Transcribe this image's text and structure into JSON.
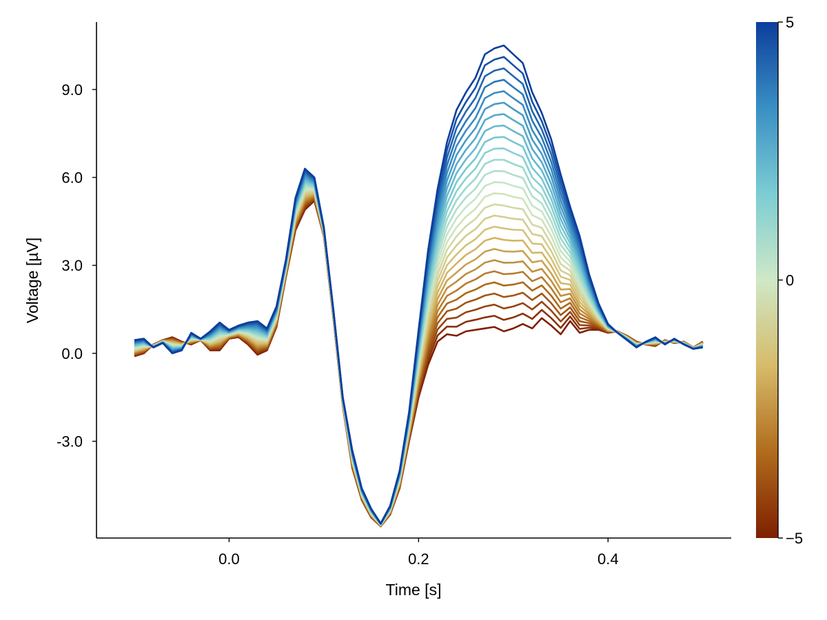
{
  "chart_data": {
    "type": "line",
    "title": "",
    "xlabel": "Time [s]",
    "ylabel": "Voltage [µV]",
    "xlim": [
      -0.14,
      0.53
    ],
    "ylim": [
      -6.3,
      11.3
    ],
    "x_ticks": [
      0.0,
      0.2,
      0.4
    ],
    "x_tick_labels": [
      "0.0",
      "0.2",
      "0.4"
    ],
    "y_ticks": [
      -3.0,
      0.0,
      3.0,
      6.0,
      9.0
    ],
    "y_tick_labels": [
      "-3.0",
      "0.0",
      "3.0",
      "6.0",
      "9.0"
    ],
    "grid": false,
    "colorbar": {
      "range": [
        -5,
        5
      ],
      "ticks": [
        -5,
        0,
        5
      ],
      "tick_labels": [
        "−5",
        "0",
        "5"
      ],
      "colors": [
        "#7f1f00",
        "#b06c1c",
        "#d6bb6a",
        "#cfe8c6",
        "#7ccdd3",
        "#3a8fc4",
        "#0c3e9c"
      ]
    },
    "series_levels": [
      -5.0,
      -4.6,
      -4.2,
      -3.8,
      -3.4,
      -3.0,
      -2.6,
      -2.2,
      -1.8,
      -1.4,
      -1.0,
      -0.6,
      -0.2,
      0.2,
      0.6,
      1.0,
      1.4,
      1.8,
      2.2,
      2.6,
      3.0,
      3.4,
      3.8,
      4.2,
      4.6,
      5.0
    ],
    "x": [
      -0.1,
      -0.09,
      -0.08,
      -0.07,
      -0.06,
      -0.05,
      -0.04,
      -0.03,
      -0.02,
      -0.01,
      0.0,
      0.01,
      0.02,
      0.03,
      0.04,
      0.05,
      0.06,
      0.07,
      0.08,
      0.09,
      0.1,
      0.11,
      0.12,
      0.13,
      0.14,
      0.15,
      0.16,
      0.17,
      0.18,
      0.19,
      0.2,
      0.21,
      0.22,
      0.23,
      0.24,
      0.25,
      0.26,
      0.27,
      0.28,
      0.29,
      0.3,
      0.31,
      0.32,
      0.33,
      0.34,
      0.35,
      0.36,
      0.37,
      0.38,
      0.39,
      0.4,
      0.41,
      0.42,
      0.43,
      0.44,
      0.45,
      0.46,
      0.47,
      0.48,
      0.49,
      0.5
    ],
    "series_min": {
      "level": -5,
      "values": [
        -0.1,
        0.0,
        0.3,
        0.45,
        0.55,
        0.4,
        0.3,
        0.45,
        0.1,
        0.1,
        0.5,
        0.55,
        0.3,
        -0.05,
        0.1,
        0.9,
        2.6,
        4.2,
        4.9,
        5.2,
        4.0,
        1.2,
        -1.8,
        -3.9,
        -5.0,
        -5.6,
        -5.9,
        -5.5,
        -4.6,
        -3.0,
        -1.5,
        -0.4,
        0.4,
        0.65,
        0.6,
        0.75,
        0.8,
        0.85,
        0.9,
        0.75,
        0.85,
        1.0,
        0.85,
        1.2,
        0.95,
        0.65,
        1.1,
        0.7,
        0.8,
        0.8,
        0.7,
        0.75,
        0.6,
        0.4,
        0.3,
        0.25,
        0.45,
        0.35,
        0.4,
        0.2,
        0.4
      ]
    },
    "series_max": {
      "level": 5,
      "values": [
        0.45,
        0.5,
        0.2,
        0.35,
        0.0,
        0.1,
        0.7,
        0.5,
        0.75,
        1.05,
        0.8,
        0.95,
        1.05,
        1.1,
        0.85,
        1.6,
        3.2,
        5.3,
        6.3,
        6.0,
        4.3,
        1.5,
        -1.5,
        -3.3,
        -4.6,
        -5.3,
        -5.8,
        -5.2,
        -4.0,
        -2.0,
        0.8,
        3.5,
        5.6,
        7.2,
        8.3,
        8.9,
        9.4,
        10.2,
        10.4,
        10.5,
        10.2,
        9.9,
        8.9,
        8.2,
        7.3,
        6.1,
        5.0,
        4.0,
        2.7,
        1.7,
        1.0,
        0.7,
        0.45,
        0.2,
        0.4,
        0.55,
        0.3,
        0.5,
        0.3,
        0.15,
        0.2
      ]
    }
  }
}
